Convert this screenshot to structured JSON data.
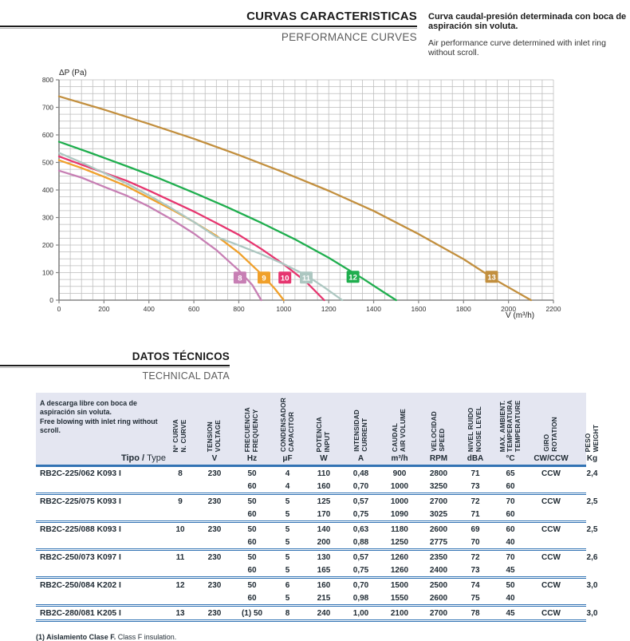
{
  "header": {
    "title_es": "CURVAS CARACTERISTICAS",
    "title_en": "PERFORMANCE CURVES",
    "desc_es": "Curva caudal-presión determinada con boca de aspiración sin voluta.",
    "desc_en": "Air performance curve determined with inlet ring without scroll."
  },
  "chart_data": {
    "type": "line",
    "title": "",
    "xlabel": "V (m³/h)",
    "ylabel": "ΔP (Pa)",
    "xlim": [
      0,
      2200
    ],
    "ylim": [
      0,
      800
    ],
    "x_ticks": [
      0,
      200,
      400,
      600,
      800,
      1000,
      1200,
      1400,
      1600,
      1800,
      2000,
      2200
    ],
    "y_ticks": [
      0,
      100,
      200,
      300,
      400,
      500,
      600,
      700,
      800
    ],
    "grid": {
      "on": true,
      "minor_x": 50,
      "minor_y": 25,
      "color": "#bcbcbc"
    },
    "legend_position": "on-curve-chips",
    "series": [
      {
        "name": "8",
        "color": "#c77fb4",
        "label_pos": [
          805,
          82
        ],
        "points": [
          [
            0,
            470
          ],
          [
            100,
            445
          ],
          [
            200,
            412
          ],
          [
            300,
            380
          ],
          [
            400,
            340
          ],
          [
            500,
            294
          ],
          [
            600,
            242
          ],
          [
            700,
            182
          ],
          [
            800,
            108
          ],
          [
            860,
            55
          ],
          [
            900,
            0
          ]
        ]
      },
      {
        "name": "9",
        "color": "#f0a02a",
        "label_pos": [
          912,
          82
        ],
        "points": [
          [
            0,
            508
          ],
          [
            100,
            480
          ],
          [
            200,
            448
          ],
          [
            300,
            414
          ],
          [
            400,
            372
          ],
          [
            500,
            330
          ],
          [
            600,
            284
          ],
          [
            700,
            234
          ],
          [
            800,
            172
          ],
          [
            900,
            95
          ],
          [
            960,
            42
          ],
          [
            1000,
            0
          ]
        ]
      },
      {
        "name": "10",
        "color": "#e6356f",
        "label_pos": [
          1005,
          82
        ],
        "points": [
          [
            0,
            522
          ],
          [
            100,
            492
          ],
          [
            200,
            463
          ],
          [
            300,
            434
          ],
          [
            400,
            398
          ],
          [
            500,
            360
          ],
          [
            600,
            322
          ],
          [
            700,
            280
          ],
          [
            800,
            237
          ],
          [
            900,
            186
          ],
          [
            1000,
            130
          ],
          [
            1100,
            66
          ],
          [
            1180,
            0
          ]
        ]
      },
      {
        "name": "11",
        "color": "#adc7c1",
        "label_pos": [
          1100,
          82
        ],
        "points": [
          [
            0,
            535
          ],
          [
            100,
            500
          ],
          [
            200,
            462
          ],
          [
            300,
            424
          ],
          [
            400,
            381
          ],
          [
            500,
            334
          ],
          [
            600,
            284
          ],
          [
            700,
            230
          ],
          [
            800,
            199
          ],
          [
            900,
            167
          ],
          [
            1000,
            131
          ],
          [
            1100,
            90
          ],
          [
            1180,
            47
          ],
          [
            1260,
            0
          ]
        ]
      },
      {
        "name": "12",
        "color": "#1fae4e",
        "label_pos": [
          1308,
          85
        ],
        "points": [
          [
            0,
            575
          ],
          [
            150,
            532
          ],
          [
            300,
            487
          ],
          [
            450,
            441
          ],
          [
            600,
            390
          ],
          [
            750,
            337
          ],
          [
            900,
            281
          ],
          [
            1050,
            221
          ],
          [
            1200,
            154
          ],
          [
            1350,
            79
          ],
          [
            1450,
            26
          ],
          [
            1500,
            0
          ]
        ]
      },
      {
        "name": "13",
        "color": "#c28f3e",
        "label_pos": [
          1925,
          85
        ],
        "points": [
          [
            0,
            740
          ],
          [
            200,
            692
          ],
          [
            400,
            640
          ],
          [
            600,
            586
          ],
          [
            800,
            527
          ],
          [
            1000,
            464
          ],
          [
            1200,
            397
          ],
          [
            1400,
            324
          ],
          [
            1600,
            240
          ],
          [
            1800,
            149
          ],
          [
            1950,
            70
          ],
          [
            2100,
            0
          ]
        ]
      }
    ]
  },
  "section2": {
    "title_es": "DATOS TÉCNICOS",
    "title_en": "TECHNICAL DATA"
  },
  "table": {
    "note_es": "A descarga libre con boca de aspiración sin voluta.",
    "note_en": "Free blowing with inlet ring without scroll.",
    "tipo_label_es": "Tipo /",
    "tipo_label_en": "Type",
    "columns": [
      {
        "es": "Nº CURVA",
        "en": "N. CURVE",
        "unit": ""
      },
      {
        "es": "TENSION",
        "en": "VOLTAGE",
        "unit": "V"
      },
      {
        "es": "FRECUENCIA",
        "en": "FREQUENCY",
        "unit": "Hz"
      },
      {
        "es": "CONDENSADOR",
        "en": "CAPACITOR",
        "unit": "μF"
      },
      {
        "es": "POTENCIA",
        "en": "INPUT",
        "unit": "W"
      },
      {
        "es": "INTENSIDAD",
        "en": "CURRENT",
        "unit": "A"
      },
      {
        "es": "CAUDAL",
        "en": "AIR VOLUME",
        "unit": "m³/h"
      },
      {
        "es": "VELOCIDAD",
        "en": "SPEED",
        "unit": "RPM"
      },
      {
        "es": "NIVEL RUIDO",
        "en": "NOISE LEVEL",
        "unit": "dBA"
      },
      {
        "es": "MAX. AMBIENT.",
        "mid": "TEMPERATURA",
        "en": "TEMPERATURE",
        "unit": "°C"
      },
      {
        "es": "GIRO",
        "en": "ROTATION",
        "unit": "CW/CCW"
      },
      {
        "es": "PESO",
        "en": "WEIGHT",
        "unit": "Kg"
      }
    ],
    "rows": [
      {
        "type": "RB2C-225/062 K093 I",
        "curve": "8",
        "voltage": "230",
        "rotation": "CCW",
        "weight": "2,4",
        "sub": [
          {
            "hz": "50",
            "uf": "4",
            "w": "110",
            "a": "0,48",
            "m3h": "900",
            "rpm": "2800",
            "dba": "71",
            "temp": "65"
          },
          {
            "hz": "60",
            "uf": "4",
            "w": "160",
            "a": "0,70",
            "m3h": "1000",
            "rpm": "3250",
            "dba": "73",
            "temp": "60"
          }
        ]
      },
      {
        "type": "RB2C-225/075 K093 I",
        "curve": "9",
        "voltage": "230",
        "rotation": "CCW",
        "weight": "2,5",
        "sub": [
          {
            "hz": "50",
            "uf": "5",
            "w": "125",
            "a": "0,57",
            "m3h": "1000",
            "rpm": "2700",
            "dba": "72",
            "temp": "70"
          },
          {
            "hz": "60",
            "uf": "5",
            "w": "170",
            "a": "0,75",
            "m3h": "1090",
            "rpm": "3025",
            "dba": "71",
            "temp": "60"
          }
        ]
      },
      {
        "type": "RB2C-225/088 K093 I",
        "curve": "10",
        "voltage": "230",
        "rotation": "CCW",
        "weight": "2,5",
        "sub": [
          {
            "hz": "50",
            "uf": "5",
            "w": "140",
            "a": "0,63",
            "m3h": "1180",
            "rpm": "2600",
            "dba": "69",
            "temp": "60"
          },
          {
            "hz": "60",
            "uf": "5",
            "w": "200",
            "a": "0,88",
            "m3h": "1250",
            "rpm": "2775",
            "dba": "70",
            "temp": "40"
          }
        ]
      },
      {
        "type": "RB2C-250/073 K097 I",
        "curve": "11",
        "voltage": "230",
        "rotation": "CCW",
        "weight": "2,6",
        "sub": [
          {
            "hz": "50",
            "uf": "5",
            "w": "130",
            "a": "0,57",
            "m3h": "1260",
            "rpm": "2350",
            "dba": "72",
            "temp": "70"
          },
          {
            "hz": "60",
            "uf": "5",
            "w": "165",
            "a": "0,75",
            "m3h": "1260",
            "rpm": "2400",
            "dba": "73",
            "temp": "45"
          }
        ]
      },
      {
        "type": "RB2C-250/084 K202 I",
        "curve": "12",
        "voltage": "230",
        "rotation": "CCW",
        "weight": "3,0",
        "sub": [
          {
            "hz": "50",
            "uf": "6",
            "w": "160",
            "a": "0,70",
            "m3h": "1500",
            "rpm": "2500",
            "dba": "74",
            "temp": "50"
          },
          {
            "hz": "60",
            "uf": "5",
            "w": "215",
            "a": "0,98",
            "m3h": "1550",
            "rpm": "2600",
            "dba": "75",
            "temp": "40"
          }
        ]
      },
      {
        "type": "RB2C-280/081 K205 I",
        "curve": "13",
        "voltage": "230",
        "rotation": "CCW",
        "weight": "3,0",
        "sub": [
          {
            "hz": "(1) 50",
            "uf": "8",
            "w": "240",
            "a": "1,00",
            "m3h": "2100",
            "rpm": "2700",
            "dba": "78",
            "temp": "45"
          }
        ]
      }
    ],
    "footnote_bold": "(1) Aislamiento Clase F.",
    "footnote_rest": "Class F insulation."
  }
}
